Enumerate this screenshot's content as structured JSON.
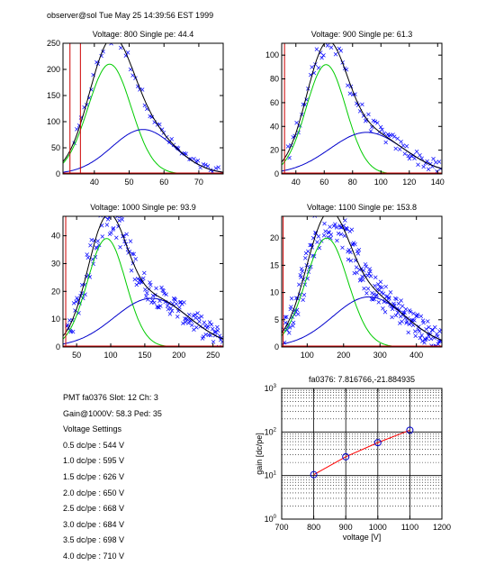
{
  "header": "observer@sol  Tue May 25 14:39:56 EST 1999",
  "colors": {
    "data": "#0000ff",
    "fit": "#000000",
    "gauss1": "#00cc00",
    "gauss2": "#0000cc",
    "ped": "#cc0000",
    "gainline": "#ff0000"
  },
  "info": {
    "pmt": "PMT fa0376 Slot: 12 Ch: 3",
    "gain": "Gain@1000V: 58.3 Ped: 35",
    "heading": "Voltage Settings",
    "settings": [
      "0.5 dc/pe : 544 V",
      "1.0 dc/pe : 595 V",
      "1.5 dc/pe : 626 V",
      "2.0 dc/pe : 650 V",
      "2.5 dc/pe : 668 V",
      "3.0 dc/pe : 684 V",
      "3.5 dc/pe : 698 V",
      "4.0 dc/pe : 710 V"
    ]
  },
  "chart_data": [
    {
      "type": "scatter",
      "title": "Voltage: 800 Single pe: 44.4",
      "xlim": [
        31,
        77
      ],
      "ylim": [
        0,
        250
      ],
      "xticks": [
        40,
        50,
        60,
        70
      ],
      "yticks": [
        0,
        50,
        100,
        150,
        200,
        250
      ],
      "pedestal": [
        33,
        36
      ],
      "g1": {
        "mu": 44.4,
        "sigma": 6.2,
        "amp": 210
      },
      "g2": {
        "mu": 54,
        "sigma": 9,
        "amp": 85
      },
      "scatter": {
        "x0": 34,
        "x1": 76,
        "n": 60,
        "noise": 8
      }
    },
    {
      "type": "scatter",
      "title": "Voltage: 900 Single pe: 61.3",
      "xlim": [
        30,
        143
      ],
      "ylim": [
        0,
        110
      ],
      "xticks": [
        40,
        60,
        80,
        100,
        120,
        140
      ],
      "yticks": [
        0,
        20,
        40,
        60,
        80,
        100
      ],
      "pedestal": [
        32
      ],
      "g1": {
        "mu": 61.3,
        "sigma": 14,
        "amp": 92
      },
      "g2": {
        "mu": 90,
        "sigma": 26,
        "amp": 35
      },
      "scatter": {
        "x0": 34,
        "x1": 143,
        "n": 90,
        "noise": 6
      }
    },
    {
      "type": "scatter",
      "title": "Voltage: 1000 Single pe: 93.9",
      "xlim": [
        30,
        265
      ],
      "ylim": [
        0,
        47
      ],
      "xticks": [
        50,
        100,
        150,
        200,
        250
      ],
      "yticks": [
        0,
        10,
        20,
        30,
        40
      ],
      "pedestal": [
        34
      ],
      "g1": {
        "mu": 93.9,
        "sigma": 28,
        "amp": 39
      },
      "g2": {
        "mu": 160,
        "sigma": 55,
        "amp": 17.5
      },
      "scatter": {
        "x0": 35,
        "x1": 265,
        "n": 170,
        "noise": 4
      }
    },
    {
      "type": "scatter",
      "title": "Voltage: 1100 Single pe: 153.8",
      "xlim": [
        30,
        470
      ],
      "ylim": [
        0,
        24
      ],
      "xticks": [
        100,
        200,
        300,
        400
      ],
      "yticks": [
        0,
        5,
        10,
        15,
        20
      ],
      "pedestal": [
        34
      ],
      "g1": {
        "mu": 153.8,
        "sigma": 58,
        "amp": 20
      },
      "g2": {
        "mu": 270,
        "sigma": 100,
        "amp": 9.2
      },
      "scatter": {
        "x0": 35,
        "x1": 470,
        "n": 240,
        "noise": 2.5
      }
    },
    {
      "type": "line",
      "title": "fa0376: 7.816766,-21.884935",
      "xlabel": "voltage [V]",
      "ylabel": "gain [dc/pe]",
      "xlim": [
        700,
        1200
      ],
      "ylim": [
        1,
        1000
      ],
      "yscale": "log",
      "xticks": [
        700,
        800,
        900,
        1000,
        1100,
        1200
      ],
      "yticks": [
        {
          "base": "10",
          "exp": "0"
        },
        {
          "base": "10",
          "exp": "1"
        },
        {
          "base": "10",
          "exp": "2"
        },
        {
          "base": "10",
          "exp": "3"
        }
      ],
      "points": [
        {
          "x": 800,
          "y": 10.5
        },
        {
          "x": 900,
          "y": 27
        },
        {
          "x": 1000,
          "y": 57
        },
        {
          "x": 1100,
          "y": 110
        }
      ]
    }
  ]
}
